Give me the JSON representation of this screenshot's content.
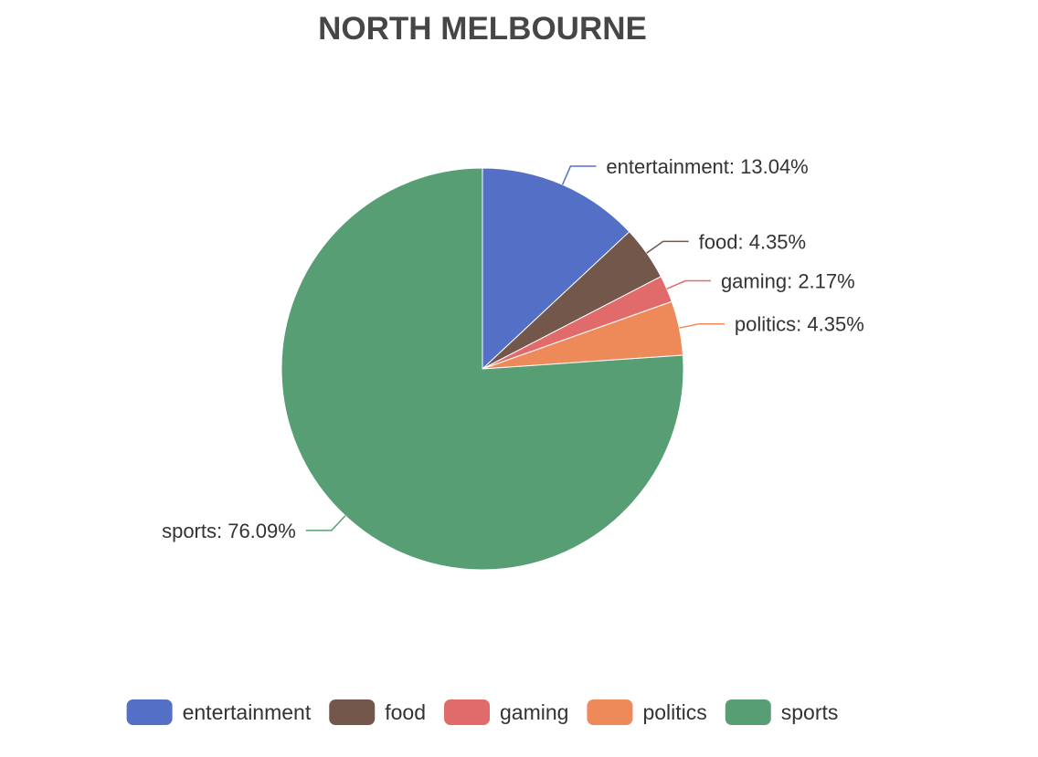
{
  "chart_data": {
    "type": "pie",
    "title": "NORTH MELBOURNE",
    "legend_position": "bottom",
    "slices": [
      {
        "name": "entertainment",
        "value": 13.04,
        "label": "entertainment: 13.04%",
        "color": "#5470c6"
      },
      {
        "name": "food",
        "value": 4.35,
        "label": "food: 4.35%",
        "color": "#73574a"
      },
      {
        "name": "gaming",
        "value": 2.17,
        "label": "gaming: 2.17%",
        "color": "#e06b6a"
      },
      {
        "name": "politics",
        "value": 4.35,
        "label": "politics: 4.35%",
        "color": "#ee8a5a"
      },
      {
        "name": "sports",
        "value": 76.09,
        "label": "sports: 76.09%",
        "color": "#579e74"
      }
    ]
  }
}
